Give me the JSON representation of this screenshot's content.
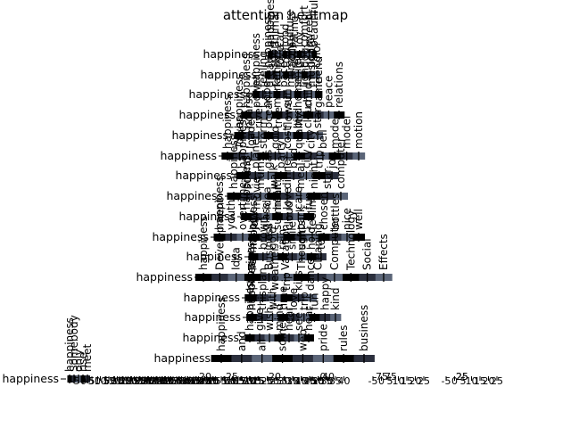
{
  "chart_data": {
    "type": "heatmap",
    "title": "attention heatmap",
    "row_label": "happiness",
    "colorbar": [
      "#000000",
      "#2b2f3d",
      "#5b6578"
    ],
    "panels": [
      {
        "cols": [
          "happiness",
          "animal",
          "car",
          "food",
          "culture",
          "rating",
          "joy",
          "comfort",
          "sweet",
          "beautiful"
        ]
      },
      {
        "cols": [
          "happiness",
          "sport",
          "love",
          "tool",
          "action",
          "gift",
          "dog",
          "heart",
          "color"
        ]
      },
      {
        "cols": [
          "happiness",
          "feeling",
          "dream",
          "family",
          "pace",
          "memory",
          "smile",
          "light",
          "music",
          "friend"
        ]
      },
      {
        "cols": [
          "happiness",
          "power",
          "hope",
          "market",
          "sun",
          "home",
          "child",
          "game",
          "peace",
          "relations"
        ]
      },
      {
        "cols": [
          "happiness",
          "hoarse",
          "river",
          "ocean",
          "tree",
          "flower",
          "bird",
          "cloud",
          "star"
        ]
      },
      {
        "cols": [
          "happiness",
          "Tower",
          "loader",
          "storm",
          "gold",
          "cost",
          "quality",
          "city",
          "bell",
          "mode",
          "model",
          "motion"
        ]
      },
      {
        "cols": [
          "happiness",
          "planet",
          "gas",
          "party",
          "bird",
          "city",
          "trip",
          "joy"
        ]
      },
      {
        "cols": [
          "happiness",
          "sound",
          "mums",
          "walk",
          "dinner",
          "meal",
          "night",
          "star",
          "computer"
        ]
      },
      {
        "cols": [
          "happiness",
          "movie",
          "idea",
          "health",
          "love",
          "care",
          "fun"
        ]
      },
      {
        "cols": [
          "happiness",
          "youth",
          "overtime",
          "joy",
          "glass",
          "summer",
          "cloud",
          "park",
          "feeling",
          "chosen",
          "bottles",
          "nice",
          "well"
        ]
      },
      {
        "cols": [
          "happiness",
          "brown",
          "gold",
          "rain",
          "smile",
          "soft",
          "hold",
          "tea"
        ]
      },
      {
        "cols": [
          "happiness",
          "Development",
          "Idea",
          "Technology",
          "Business",
          "Vacation",
          "Thoughts",
          "Cleaning",
          "Computer",
          "Technology",
          "Social",
          "Effects"
        ]
      },
      {
        "cols": [
          "happiness",
          "plan",
          "weather",
          "trip",
          "kiss",
          "dance"
        ]
      },
      {
        "cols": [
          "happiness",
          "this",
          "with",
          "time",
          "love",
          "trip",
          "fun",
          "happy",
          "kind"
        ]
      },
      {
        "cols": [
          "happiness",
          "give",
          "wish",
          "mind",
          "hear",
          "see",
          "hear"
        ]
      },
      {
        "cols": [
          "happiness",
          "and",
          "all",
          "some",
          "web",
          "pride",
          "rules",
          "business"
        ]
      },
      {
        "cols": [
          "happiness",
          "Somebody",
          "only",
          "rise",
          "meet"
        ]
      }
    ],
    "x_ticks": [
      [
        "-5",
        "0",
        "5",
        "10",
        "15",
        "20",
        "25",
        "30",
        "35",
        "40"
      ],
      [
        "-5",
        "0",
        "5",
        "10",
        "15",
        "20",
        "25",
        "30",
        "35",
        "40",
        "45",
        "50"
      ],
      [
        "-5",
        "0",
        "5",
        "10",
        "15",
        "20",
        "25",
        "30",
        "35",
        "40",
        "45",
        "50",
        "55",
        "60",
        "65",
        "70",
        "75"
      ],
      [
        "-5",
        "0",
        "5",
        "10",
        "15",
        "20",
        "25"
      ],
      [
        "-5",
        "0",
        "5",
        "10",
        "15",
        "20",
        "25"
      ],
      [
        "-5",
        "0",
        "5",
        "10",
        "15",
        "20",
        "25",
        "30",
        "35",
        "40",
        "45",
        "50"
      ],
      [
        "-5",
        "0",
        "5",
        "10",
        "15",
        "20",
        "25",
        "30",
        "35",
        "40"
      ],
      [
        "-5",
        "0",
        "5"
      ],
      [
        "-5",
        "0",
        "5",
        "10",
        "15",
        "20",
        "25"
      ],
      [
        "-5",
        "0",
        "5",
        "10",
        "15",
        "20",
        "25",
        "30",
        "35",
        "40",
        "45",
        "50",
        "55",
        "60",
        "65",
        "70",
        "75"
      ],
      [
        "-5",
        "0",
        "5",
        "10",
        "15",
        "20",
        "25"
      ]
    ],
    "overlay_ticks": [
      "75",
      "25",
      "20",
      "20",
      "0",
      "40",
      "25",
      "75",
      "25"
    ]
  }
}
